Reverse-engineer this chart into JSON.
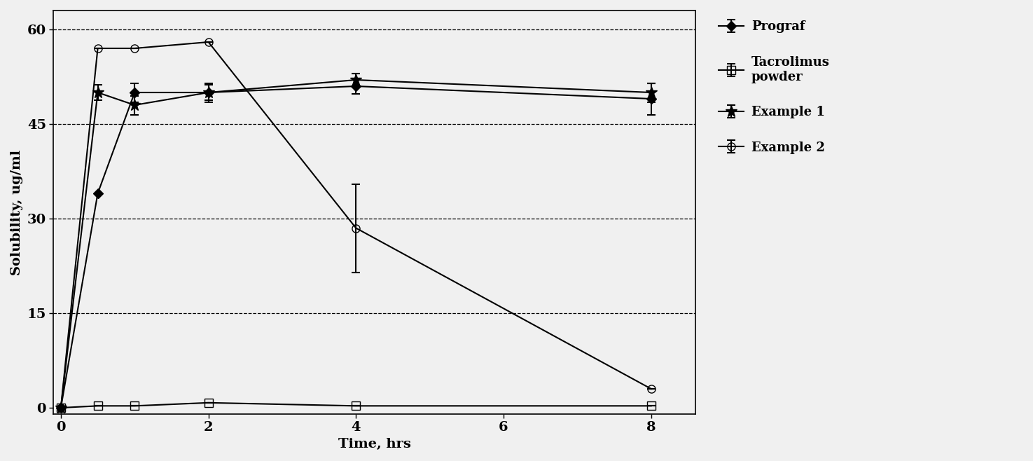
{
  "title": "",
  "xlabel": "Time, hrs",
  "ylabel": "Solubility, ug/ml",
  "xlim": [
    -0.1,
    8.6
  ],
  "ylim": [
    -1,
    63
  ],
  "yticks": [
    0,
    15,
    30,
    45,
    60
  ],
  "xticks": [
    0,
    2,
    4,
    6,
    8
  ],
  "background_color": "#f0f0f0",
  "plot_bg_color": "#f0f0f0",
  "series": {
    "Prograf": {
      "x": [
        0,
        0.5,
        1,
        2,
        4,
        8
      ],
      "y": [
        0,
        34,
        50,
        50,
        51,
        49
      ],
      "yerr": [
        0,
        0,
        1.5,
        1.5,
        1.2,
        2.5
      ],
      "color": "#000000",
      "marker": "D",
      "markersize": 7,
      "linestyle": "-",
      "linewidth": 1.5,
      "fillstyle": "full"
    },
    "Tacrolimus powder": {
      "x": [
        0,
        0.5,
        1,
        2,
        4,
        8
      ],
      "y": [
        0,
        0.3,
        0.3,
        0.8,
        0.3,
        0.3
      ],
      "yerr": [
        0,
        0,
        0,
        0,
        0,
        0
      ],
      "color": "#000000",
      "marker": "s",
      "markersize": 9,
      "linestyle": "-",
      "linewidth": 1.5,
      "fillstyle": "none"
    },
    "Example 1": {
      "x": [
        0,
        0.5,
        1,
        2,
        4,
        8
      ],
      "y": [
        0,
        50,
        48,
        50,
        52,
        50
      ],
      "yerr": [
        0,
        1.2,
        1.5,
        1.2,
        1.0,
        1.5
      ],
      "color": "#000000",
      "marker": "*",
      "markersize": 12,
      "linestyle": "-",
      "linewidth": 1.5,
      "fillstyle": "full"
    },
    "Example 2": {
      "x": [
        0,
        0.5,
        1,
        2,
        4,
        8
      ],
      "y": [
        0,
        57,
        57,
        58,
        28.5,
        3
      ],
      "yerr": [
        0,
        0,
        0,
        0,
        7,
        0
      ],
      "color": "#000000",
      "marker": "o",
      "markersize": 8,
      "linestyle": "-",
      "linewidth": 1.5,
      "fillstyle": "none"
    }
  },
  "legend_order": [
    "Prograf",
    "Tacrolimus powder",
    "Example 1",
    "Example 2"
  ],
  "grid_yticks": [
    15,
    30,
    45,
    60
  ],
  "font_family": "serif",
  "axis_fontsize": 14,
  "tick_fontsize": 14,
  "legend_fontsize": 13
}
